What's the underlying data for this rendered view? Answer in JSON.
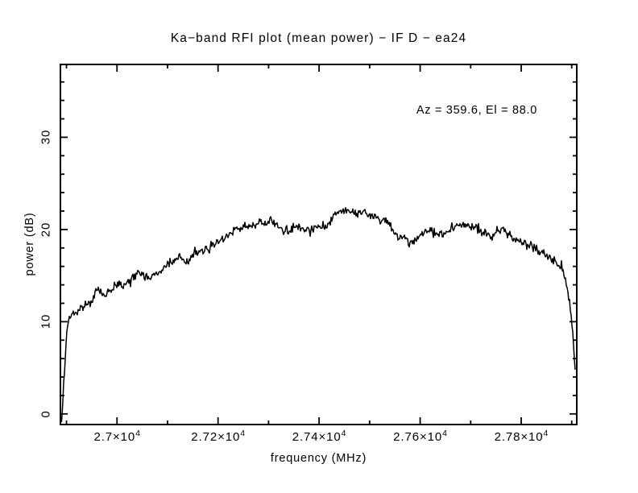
{
  "chart_data": {
    "type": "line",
    "title": "Ka−band RFI plot (mean power) − IF D − ea24",
    "annotation": "Az = 359.6, El = 88.0",
    "xlabel": "frequency (MHz)",
    "ylabel": "power (dB)",
    "xlim": [
      26888,
      27910
    ],
    "ylim": [
      -1.15,
      37.9
    ],
    "grid": false,
    "legend": "none",
    "line_color": "#000000",
    "background_color": "#ffffff",
    "x_major_ticks": [
      {
        "value": 27000,
        "label": "2.7×10",
        "sup": "4"
      },
      {
        "value": 27200,
        "label": "2.72×10",
        "sup": "4"
      },
      {
        "value": 27400,
        "label": "2.74×10",
        "sup": "4"
      },
      {
        "value": 27600,
        "label": "2.76×10",
        "sup": "4"
      },
      {
        "value": 27800,
        "label": "2.78×10",
        "sup": "4"
      }
    ],
    "x_minor_ticks": [
      26900,
      27100,
      27300,
      27500,
      27700,
      27900
    ],
    "y_major_ticks": [
      {
        "value": 0,
        "label": "0"
      },
      {
        "value": 10,
        "label": "10"
      },
      {
        "value": 20,
        "label": "20"
      },
      {
        "value": 30,
        "label": "30"
      }
    ],
    "y_minor_ticks": [
      2,
      4,
      6,
      8,
      12,
      14,
      16,
      18,
      22,
      24,
      26,
      28,
      32,
      34,
      36
    ],
    "series": [
      {
        "name": "mean power",
        "points": [
          [
            26890,
            -0.9
          ],
          [
            26893,
            1.5
          ],
          [
            26896,
            4.5
          ],
          [
            26900,
            8.2
          ],
          [
            26904,
            10.3
          ],
          [
            26908,
            10.7
          ],
          [
            26914,
            11.0
          ],
          [
            26922,
            11.2
          ],
          [
            26930,
            11.5
          ],
          [
            26938,
            11.7
          ],
          [
            26946,
            12.0
          ],
          [
            26952,
            12.5
          ],
          [
            26958,
            13.3
          ],
          [
            26964,
            13.3
          ],
          [
            26970,
            13.1
          ],
          [
            26978,
            12.9
          ],
          [
            26986,
            13.5
          ],
          [
            26994,
            13.8
          ],
          [
            27002,
            14.0
          ],
          [
            27010,
            14.1
          ],
          [
            27018,
            14.2
          ],
          [
            27026,
            14.4
          ],
          [
            27034,
            14.9
          ],
          [
            27040,
            15.3
          ],
          [
            27048,
            15.2
          ],
          [
            27056,
            15.0
          ],
          [
            27064,
            14.8
          ],
          [
            27072,
            15.0
          ],
          [
            27080,
            15.3
          ],
          [
            27088,
            15.6
          ],
          [
            27096,
            15.9
          ],
          [
            27104,
            16.3
          ],
          [
            27112,
            16.6
          ],
          [
            27120,
            16.9
          ],
          [
            27128,
            17.0
          ],
          [
            27136,
            16.4
          ],
          [
            27142,
            16.6
          ],
          [
            27150,
            17.0
          ],
          [
            27158,
            17.3
          ],
          [
            27166,
            17.5
          ],
          [
            27174,
            17.7
          ],
          [
            27182,
            18.0
          ],
          [
            27190,
            18.3
          ],
          [
            27198,
            18.6
          ],
          [
            27206,
            18.9
          ],
          [
            27214,
            19.2
          ],
          [
            27222,
            19.5
          ],
          [
            27230,
            19.8
          ],
          [
            27240,
            20.1
          ],
          [
            27250,
            20.3
          ],
          [
            27258,
            20.3
          ],
          [
            27266,
            20.4
          ],
          [
            27274,
            20.6
          ],
          [
            27282,
            20.7
          ],
          [
            27290,
            20.8
          ],
          [
            27298,
            20.9
          ],
          [
            27306,
            20.8
          ],
          [
            27314,
            20.6
          ],
          [
            27322,
            20.3
          ],
          [
            27330,
            19.8
          ],
          [
            27336,
            19.7
          ],
          [
            27344,
            20.1
          ],
          [
            27352,
            20.3
          ],
          [
            27360,
            20.4
          ],
          [
            27368,
            20.3
          ],
          [
            27376,
            20.0
          ],
          [
            27382,
            19.8
          ],
          [
            27390,
            20.1
          ],
          [
            27398,
            20.3
          ],
          [
            27406,
            20.4
          ],
          [
            27414,
            20.5
          ],
          [
            27422,
            20.8
          ],
          [
            27428,
            21.4
          ],
          [
            27434,
            21.8
          ],
          [
            27442,
            22.0
          ],
          [
            27450,
            22.0
          ],
          [
            27458,
            21.9
          ],
          [
            27466,
            21.9
          ],
          [
            27474,
            21.8
          ],
          [
            27482,
            21.7
          ],
          [
            27490,
            21.6
          ],
          [
            27498,
            21.5
          ],
          [
            27506,
            21.4
          ],
          [
            27514,
            21.3
          ],
          [
            27522,
            21.1
          ],
          [
            27530,
            20.9
          ],
          [
            27538,
            20.5
          ],
          [
            27546,
            20.0
          ],
          [
            27554,
            19.4
          ],
          [
            27562,
            19.1
          ],
          [
            27570,
            18.9
          ],
          [
            27578,
            18.6
          ],
          [
            27586,
            18.5
          ],
          [
            27592,
            18.8
          ],
          [
            27598,
            19.3
          ],
          [
            27606,
            19.7
          ],
          [
            27614,
            19.9
          ],
          [
            27622,
            19.8
          ],
          [
            27630,
            19.6
          ],
          [
            27638,
            19.4
          ],
          [
            27646,
            19.5
          ],
          [
            27654,
            19.8
          ],
          [
            27662,
            20.1
          ],
          [
            27670,
            20.3
          ],
          [
            27678,
            20.5
          ],
          [
            27686,
            20.5
          ],
          [
            27694,
            20.4
          ],
          [
            27702,
            20.3
          ],
          [
            27710,
            20.1
          ],
          [
            27718,
            19.9
          ],
          [
            27726,
            19.6
          ],
          [
            27734,
            19.3
          ],
          [
            27742,
            19.2
          ],
          [
            27748,
            19.6
          ],
          [
            27756,
            19.9
          ],
          [
            27764,
            20.0
          ],
          [
            27772,
            19.7
          ],
          [
            27780,
            19.3
          ],
          [
            27788,
            18.9
          ],
          [
            27796,
            18.7
          ],
          [
            27804,
            18.6
          ],
          [
            27812,
            18.4
          ],
          [
            27820,
            18.2
          ],
          [
            27828,
            17.9
          ],
          [
            27836,
            17.6
          ],
          [
            27844,
            17.4
          ],
          [
            27852,
            17.1
          ],
          [
            27860,
            16.8
          ],
          [
            27866,
            16.5
          ],
          [
            27872,
            16.2
          ],
          [
            27878,
            15.8
          ],
          [
            27884,
            15.3
          ],
          [
            27888,
            14.7
          ],
          [
            27892,
            13.8
          ],
          [
            27896,
            12.2
          ],
          [
            27899,
            10.5
          ],
          [
            27902,
            8.5
          ],
          [
            27905,
            6.0
          ],
          [
            27908,
            3.2
          ]
        ]
      }
    ]
  }
}
